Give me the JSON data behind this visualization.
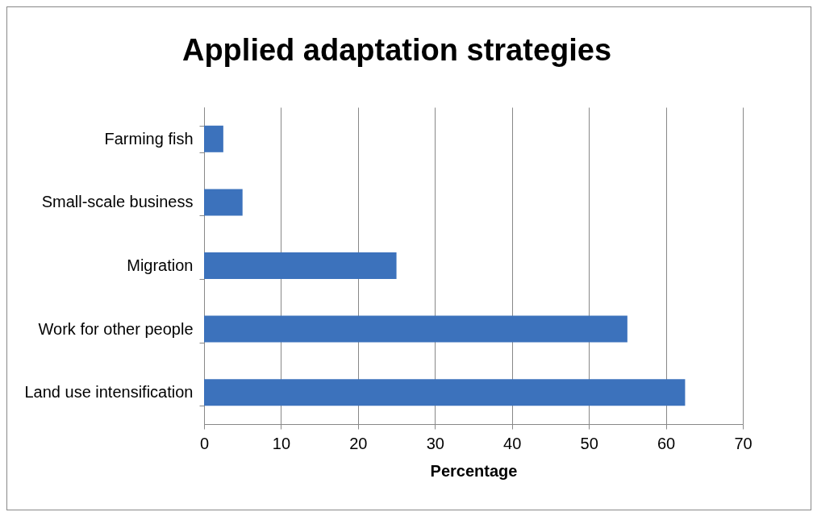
{
  "chart_data": {
    "type": "bar",
    "orientation": "horizontal",
    "title": "Applied adaptation strategies",
    "xlabel": "Percentage",
    "categories": [
      "Farming fish",
      "Small-scale business",
      "Migration",
      "Work for other people",
      "Land use intensification"
    ],
    "values": [
      2.5,
      5,
      25,
      55,
      62.5
    ],
    "color": "#3c72bc",
    "xlim": [
      0,
      70
    ],
    "xticks": [
      0,
      10,
      20,
      30,
      40,
      50,
      60,
      70
    ],
    "grid": "x"
  }
}
